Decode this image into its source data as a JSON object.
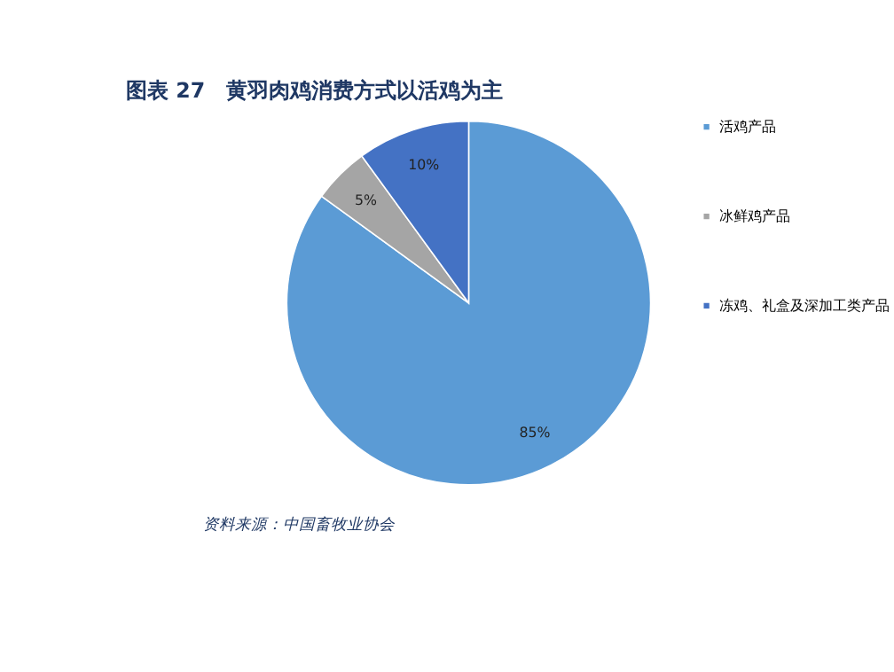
{
  "chart_data": {
    "type": "pie",
    "title": "图表 27　黄羽肉鸡消费方式以活鸡为主",
    "categories": [
      "活鸡产品",
      "冰鲜鸡产品",
      "冻鸡、礼盒及深加工类产品"
    ],
    "values": [
      85,
      5,
      10
    ],
    "colors": [
      "#5b9bd5",
      "#a5a5a5",
      "#4472c4"
    ],
    "value_labels": [
      "85%",
      "5%",
      "10%"
    ],
    "legend": "right",
    "annotations": [
      "资料来源：中国畜牧业协会"
    ]
  }
}
